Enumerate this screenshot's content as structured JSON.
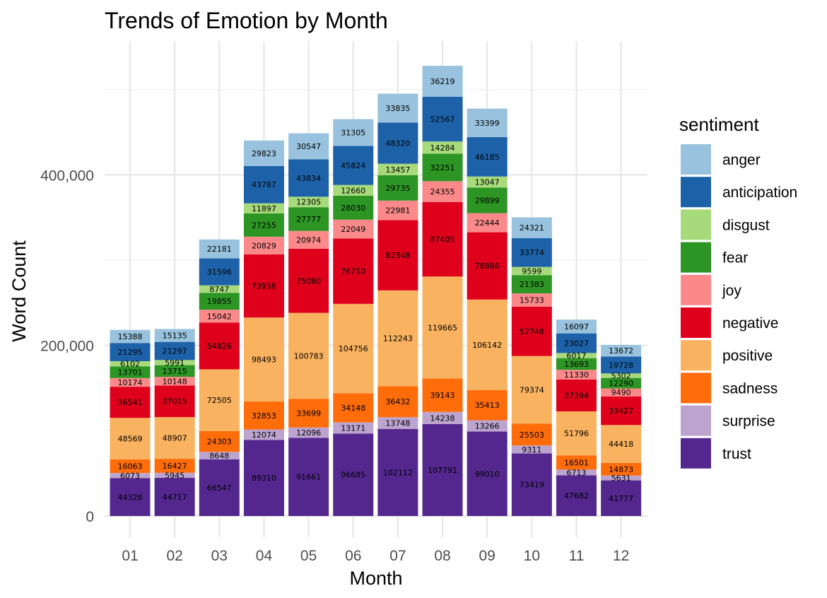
{
  "chart_data": {
    "type": "bar",
    "stacked": true,
    "title": "Trends of Emotion by Month",
    "xlabel": "Month",
    "ylabel": "Word Count",
    "categories": [
      "01",
      "02",
      "03",
      "04",
      "05",
      "06",
      "07",
      "08",
      "09",
      "10",
      "11",
      "12"
    ],
    "ylim": [
      0,
      560000
    ],
    "yticks": [
      0,
      200000,
      400000
    ],
    "ytick_labels": [
      "0",
      "200,000",
      "400,000"
    ],
    "grid": true,
    "legend": {
      "title": "sentiment",
      "position": "right"
    },
    "series": [
      {
        "name": "trust",
        "color": "#54278F",
        "values": [
          44328,
          44717,
          66547,
          89310,
          91661,
          96685,
          102112,
          107791,
          99010,
          73419,
          47682,
          41777
        ]
      },
      {
        "name": "surprise",
        "color": "#BCA4CF",
        "values": [
          6073,
          5945,
          8648,
          12074,
          12096,
          13171,
          13748,
          14238,
          13266,
          9311,
          6713,
          5631
        ]
      },
      {
        "name": "sadness",
        "color": "#FF6C0A",
        "values": [
          16063,
          16427,
          24303,
          32853,
          33699,
          34148,
          36432,
          39143,
          35413,
          25503,
          16501,
          14873
        ]
      },
      {
        "name": "positive",
        "color": "#F9B25F",
        "values": [
          48569,
          48907,
          72505,
          98493,
          100783,
          104756,
          112243,
          119665,
          106142,
          79374,
          51796,
          44418
        ]
      },
      {
        "name": "negative",
        "color": "#DF001C",
        "values": [
          36541,
          37015,
          54826,
          73958,
          75080,
          76710,
          82348,
          87405,
          78886,
          57748,
          37394,
          33427
        ]
      },
      {
        "name": "joy",
        "color": "#FB898A",
        "values": [
          10174,
          10148,
          15042,
          20829,
          20974,
          22049,
          22981,
          24355,
          22444,
          15733,
          11330,
          9490
        ]
      },
      {
        "name": "fear",
        "color": "#2C9523",
        "values": [
          13701,
          13715,
          19855,
          27255,
          27777,
          28030,
          29735,
          32251,
          29899,
          21383,
          13693,
          12290
        ]
      },
      {
        "name": "disgust",
        "color": "#A7DA7B",
        "values": [
          6102,
          5991,
          8747,
          11897,
          12305,
          12660,
          13457,
          14284,
          13047,
          9599,
          6017,
          5302
        ]
      },
      {
        "name": "anticipation",
        "color": "#1D62A9",
        "values": [
          21295,
          21297,
          31596,
          43787,
          43834,
          45824,
          48320,
          52567,
          46185,
          33774,
          23027,
          19728
        ]
      },
      {
        "name": "anger",
        "color": "#98C2DD",
        "values": [
          15388,
          15135,
          22181,
          29823,
          30547,
          31305,
          33835,
          36219,
          33399,
          24321,
          16097,
          13672
        ]
      }
    ],
    "legend_order": [
      "anger",
      "anticipation",
      "disgust",
      "fear",
      "joy",
      "negative",
      "positive",
      "sadness",
      "surprise",
      "trust"
    ]
  }
}
